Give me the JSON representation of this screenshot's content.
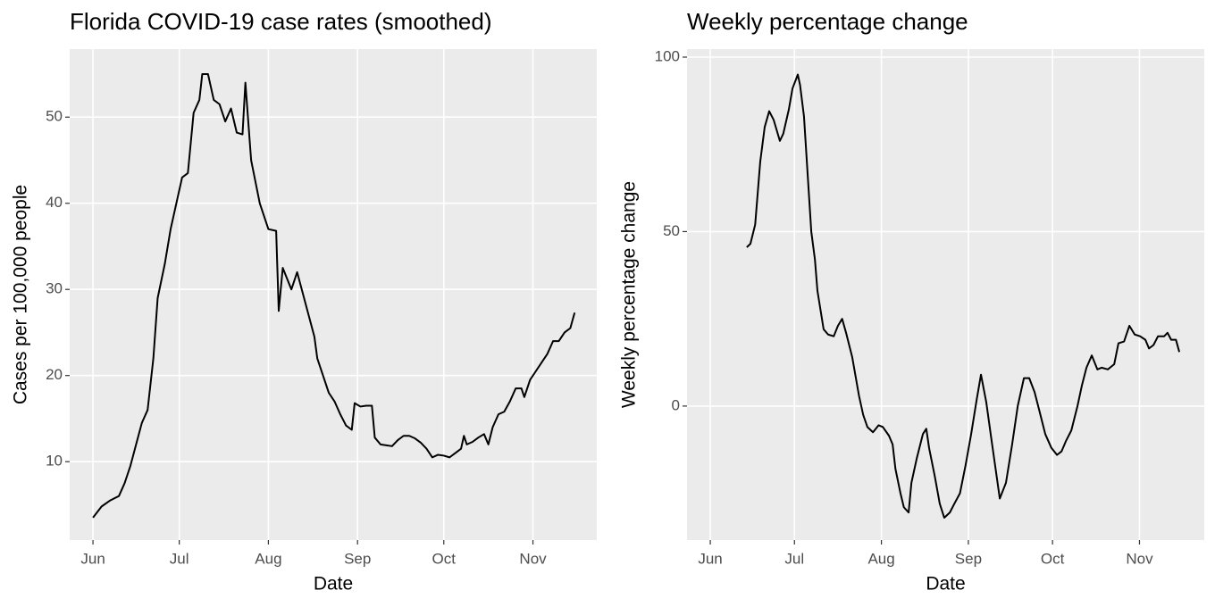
{
  "chart_data": [
    {
      "type": "line",
      "title": "Florida COVID-19 case rates (smoothed)",
      "x_label": "Date",
      "y_label": "Cases per 100,000 people",
      "color": "#000000",
      "grid": true,
      "xlim": [
        -8.1,
        175.2
      ],
      "ylim": [
        0.9,
        57.9
      ],
      "xticks": [
        {
          "value": 0,
          "label": "Jun"
        },
        {
          "value": 30,
          "label": "Jul"
        },
        {
          "value": 61,
          "label": "Aug"
        },
        {
          "value": 92,
          "label": "Sep"
        },
        {
          "value": 122,
          "label": "Oct"
        },
        {
          "value": 153,
          "label": "Nov"
        }
      ],
      "yticks": [
        10,
        20,
        30,
        40,
        50
      ],
      "x": [
        0,
        3,
        6,
        9,
        11,
        13,
        15,
        17,
        19,
        21,
        22.5,
        25,
        27,
        29,
        31,
        33,
        35,
        37,
        38,
        40,
        42,
        44,
        46,
        48,
        50,
        52,
        53,
        55,
        58,
        61,
        63.7,
        64.6,
        66,
        69,
        71,
        73,
        75,
        77,
        78,
        80,
        82,
        84,
        86,
        88,
        90,
        91,
        93,
        95,
        97,
        98,
        100,
        102,
        104,
        106,
        108,
        110,
        112,
        114,
        116,
        118,
        120,
        122,
        124,
        126,
        128,
        129,
        130,
        132,
        134,
        136,
        137.5,
        139,
        141,
        143,
        145,
        147,
        149,
        150,
        152,
        154,
        156,
        158,
        160,
        162,
        164,
        166,
        167.5
      ],
      "values": [
        3.5,
        4.8,
        5.5,
        6.0,
        7.5,
        9.5,
        12,
        14.5,
        16,
        22,
        29,
        33,
        37,
        40,
        43,
        43.5,
        50.5,
        52,
        55,
        55,
        52,
        51.5,
        49.5,
        51,
        48.2,
        48,
        54,
        45,
        40,
        37,
        36.8,
        27.5,
        32.5,
        30,
        32,
        29.5,
        27,
        24.5,
        22,
        20,
        18,
        17,
        15.5,
        14.2,
        13.7,
        16.8,
        16.4,
        16.5,
        16.5,
        12.8,
        12,
        11.9,
        11.8,
        12.5,
        13,
        13,
        12.7,
        12.2,
        11.5,
        10.5,
        10.8,
        10.7,
        10.5,
        11,
        11.5,
        13,
        12,
        12.3,
        12.8,
        13.2,
        12,
        14,
        15.5,
        15.8,
        17,
        18.5,
        18.5,
        17.5,
        19.5,
        20.5,
        21.5,
        22.5,
        24,
        24,
        25,
        25.5,
        27.3
      ]
    },
    {
      "type": "line",
      "title": "Weekly percentage change",
      "x_label": "Date",
      "y_label": "Weekly percentage change",
      "color": "#000000",
      "grid": true,
      "xlim": [
        -8.3,
        176.1
      ],
      "ylim": [
        -38.4,
        102.3
      ],
      "xticks": [
        {
          "value": 0,
          "label": "Jun"
        },
        {
          "value": 30,
          "label": "Jul"
        },
        {
          "value": 61,
          "label": "Aug"
        },
        {
          "value": 92,
          "label": "Sep"
        },
        {
          "value": 122,
          "label": "Oct"
        },
        {
          "value": 153,
          "label": "Nov"
        }
      ],
      "yticks": [
        0,
        50,
        100
      ],
      "x": [
        13,
        14.3,
        16,
        17.8,
        19.4,
        21,
        22.6,
        24.8,
        26,
        28,
        29.3,
        31.2,
        32,
        33.4,
        36,
        37.3,
        38.2,
        40.4,
        42,
        44,
        45.5,
        47,
        48.4,
        50.6,
        53,
        54.5,
        56,
        58,
        60,
        61.5,
        63.7,
        65,
        66,
        67.8,
        69,
        70.7,
        71.7,
        73.6,
        75.8,
        77,
        78,
        80,
        81.8,
        83.4,
        85.4,
        87,
        89,
        91,
        93,
        95,
        96.5,
        98.4,
        100.3,
        103.2,
        105.4,
        107.6,
        109.6,
        111.8,
        113.7,
        115.6,
        117.2,
        119.4,
        121.6,
        123.6,
        125.2,
        126.8,
        128.7,
        130.9,
        132.5,
        134.1,
        136,
        138,
        139.5,
        141.7,
        144,
        145.5,
        147.5,
        149.4,
        151.3,
        153.2,
        155.1,
        156.4,
        158,
        159.6,
        161.8,
        163,
        164.3,
        166,
        167.2
      ],
      "values": [
        45.5,
        46.5,
        52,
        70,
        80,
        84.5,
        82,
        76,
        78,
        85,
        91,
        95,
        92,
        83,
        50,
        42,
        33,
        22,
        20.5,
        20,
        23,
        25,
        21,
        14,
        3,
        -2.5,
        -6,
        -7.5,
        -5.5,
        -6,
        -8.5,
        -11,
        -18,
        -25,
        -29,
        -30.5,
        -22,
        -15,
        -8,
        -6.5,
        -12,
        -20,
        -28,
        -32,
        -30.5,
        -28,
        -25,
        -17,
        -8,
        2,
        9,
        1,
        -10,
        -26.5,
        -22,
        -11,
        0,
        8,
        8,
        4,
        -1,
        -8,
        -12,
        -14,
        -13,
        -10,
        -7,
        0,
        6,
        11,
        14.5,
        10.5,
        11,
        10.5,
        12,
        18,
        18.5,
        23,
        20.5,
        20,
        19,
        16.5,
        17.5,
        20,
        20,
        21,
        19,
        19,
        15.5
      ]
    }
  ]
}
